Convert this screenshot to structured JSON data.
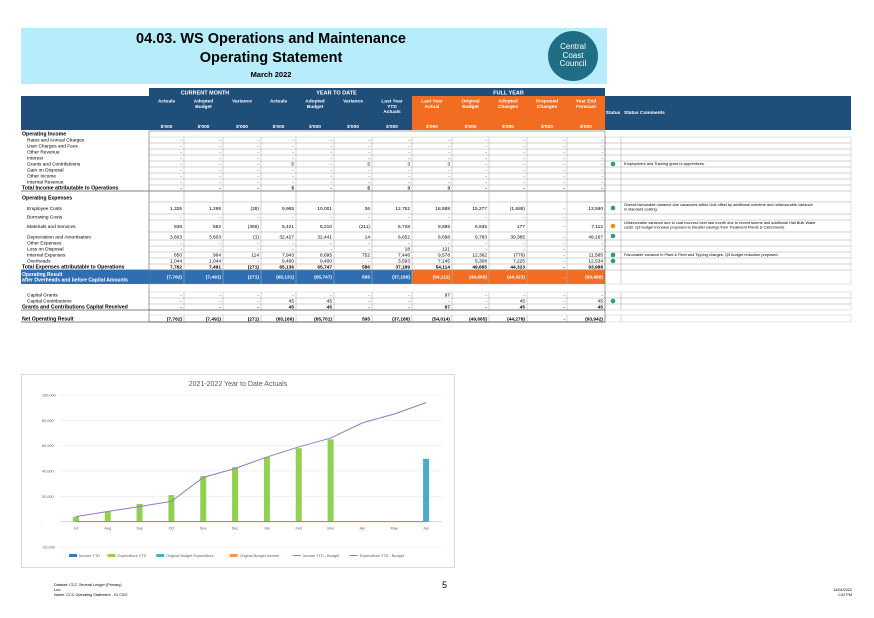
{
  "header": {
    "title_line1": "04.03.  WS Operations and Maintenance",
    "title_line2": "Operating Statement",
    "period": "March 2022",
    "logo_lines": [
      "Central",
      "Coast",
      "Council"
    ]
  },
  "table": {
    "groups": [
      "CURRENT MONTH",
      "YEAR TO DATE",
      "FULL YEAR"
    ],
    "columns": [
      "Actuals",
      "Adopted Budget",
      "Variance",
      "Actuals",
      "Adopted Budget",
      "Variance",
      "Last Year YTD Actuals",
      "Last Year Actual",
      "Original Budget",
      "Adopted Changes",
      "Proposed Changes",
      "Year End Forecast"
    ],
    "units": [
      "$'000",
      "$'000",
      "$'000",
      "$'000",
      "$'000",
      "$'000",
      "$'000",
      "$'000",
      "$'000",
      "$'000",
      "$'000",
      "$'000"
    ],
    "status_header": "Status",
    "comments_header": "Status Comments",
    "rows": [
      {
        "label": "Operating Income",
        "type": "section",
        "values": []
      },
      {
        "label": "Rates and Annual Charges",
        "type": "item",
        "values": [
          "-",
          "-",
          "-",
          "-",
          "-",
          "-",
          "-",
          "-",
          "-",
          "-",
          "-",
          "-"
        ]
      },
      {
        "label": "User Charges and Fees",
        "type": "item",
        "values": [
          "-",
          "-",
          "-",
          "-",
          "-",
          "-",
          "-",
          "-",
          "-",
          "-",
          "-",
          "-"
        ]
      },
      {
        "label": "Other Revenue",
        "type": "item",
        "values": [
          "-",
          "-",
          "-",
          "-",
          "-",
          "-",
          "-",
          "-",
          "-",
          "-",
          "-",
          "-"
        ]
      },
      {
        "label": "Interest",
        "type": "item",
        "values": [
          "-",
          "-",
          "-",
          "-",
          "-",
          "-",
          "-",
          "-",
          "-",
          "-",
          "-",
          "-"
        ]
      },
      {
        "label": "Grants and Contributions",
        "type": "item",
        "values": [
          "-",
          "-",
          "-",
          "5",
          "-",
          "5",
          "3",
          "3",
          "-",
          "-",
          "-",
          "-"
        ],
        "status": "green",
        "comment": "Employment and Training grant re apprentices."
      },
      {
        "label": "Gain on Disposal",
        "type": "item",
        "values": [
          "-",
          "-",
          "-",
          "-",
          "-",
          "-",
          "-",
          "-",
          "-",
          "-",
          "-",
          "-"
        ]
      },
      {
        "label": "Other Income",
        "type": "item",
        "values": [
          "-",
          "-",
          "-",
          "-",
          "-",
          "-",
          "-",
          "-",
          "-",
          "-",
          "-",
          "-"
        ]
      },
      {
        "label": "Internal Revenue",
        "type": "item",
        "values": [
          "-",
          "-",
          "-",
          "-",
          "-",
          "-",
          "-",
          "-",
          "-",
          "-",
          "-",
          "-"
        ]
      },
      {
        "label": "Total Income attributable to Operations",
        "type": "total",
        "values": [
          "-",
          "-",
          "-",
          "5",
          "-",
          "5",
          "3",
          "3",
          "-",
          "-",
          "-",
          "-"
        ]
      },
      {
        "label": "Operating Expenses",
        "type": "section",
        "values": []
      },
      {
        "label": "Employee Costs",
        "type": "item",
        "tall": true,
        "values": [
          "1,326",
          "1,298",
          "(28)",
          "9,965",
          "10,001",
          "36",
          "12,752",
          "18,888",
          "15,277",
          "(1,688)",
          "-",
          "13,590"
        ],
        "status": "green",
        "comment": "Overall favourable variance due vacancies within Unit offset by additional overtime and unfavourable variance in standard costing."
      },
      {
        "label": "Borrowing Costs",
        "type": "item",
        "values": [
          "-",
          "-",
          "-",
          "-",
          "-",
          "-",
          "-",
          "-",
          "-",
          "-",
          "-",
          "-"
        ]
      },
      {
        "label": "Materials and Services",
        "type": "item",
        "tall": true,
        "values": [
          "938",
          "582",
          "(356)",
          "5,421",
          "5,210",
          "(211)",
          "6,728",
          "9,885",
          "6,935",
          "177",
          "-",
          "7,112"
        ],
        "status": "orange",
        "comment": "Unfavourable variance due to coat incurred over last month due to recent storms and additional Hall Bulk Water costs. Q3 budget increase proposed to transfer savings from Treatment Plants & Catchments."
      },
      {
        "label": "Depreciation and Amortisation",
        "type": "item",
        "values": [
          "3,603",
          "3,603",
          "(1)",
          "32,427",
          "32,441",
          "14",
          "6,652",
          "8,698",
          "9,783",
          "39,385",
          "-",
          "49,167"
        ],
        "status": "green"
      },
      {
        "label": "Other Expenses",
        "type": "item",
        "values": [
          "-",
          "-",
          "-",
          "-",
          "-",
          "-",
          "-",
          "-",
          "-",
          "-",
          "-",
          "-"
        ]
      },
      {
        "label": "Loss on Disposal",
        "type": "item",
        "values": [
          "-",
          "-",
          "-",
          "-",
          "-",
          "-",
          "18",
          "121",
          "-",
          "-",
          "-",
          "-"
        ]
      },
      {
        "label": "Internal Expenses",
        "type": "item",
        "values": [
          "850",
          "964",
          "114",
          "7,943",
          "8,695",
          "752",
          "7,446",
          "9,578",
          "12,362",
          "(776)",
          "-",
          "11,585"
        ],
        "status": "green",
        "comment": "Favourable variance in Plant & Fleet and Tipping charges, Q3 budget reduction proposed."
      },
      {
        "label": "Overheads",
        "type": "item",
        "values": [
          "1,044",
          "1,044",
          "-",
          "9,400",
          "9,400",
          "-",
          "3,593",
          "7,145",
          "5,308",
          "7,225",
          "-",
          "12,534"
        ],
        "status": "green"
      },
      {
        "label": "Total Expenses attributable to Operations",
        "type": "total",
        "values": [
          "7,762",
          "7,491",
          "(271)",
          "65,136",
          "65,747",
          "586",
          "37,189",
          "54,114",
          "49,665",
          "44,323",
          "-",
          "93,988"
        ]
      },
      {
        "label": "Operating Result|after Overheads and before Capital Amounts",
        "type": "result",
        "values": [
          "(7,762)",
          "(7,491)",
          "(271)",
          "(65,131)",
          "(65,747)",
          "595",
          "(37,186)",
          "(54,111)",
          "(49,665)",
          "(44,323)",
          "-",
          "(93,988)"
        ]
      },
      {
        "label": "Capital Grants",
        "type": "item",
        "values": [
          "-",
          "-",
          "-",
          "-",
          "-",
          "-",
          "-",
          "97",
          "-",
          "-",
          "-",
          "-"
        ]
      },
      {
        "label": "Capital Contributions",
        "type": "item",
        "values": [
          "-",
          "-",
          "-",
          "45",
          "45",
          "-",
          "-",
          "-",
          "-",
          "45",
          "-",
          "45"
        ],
        "status": "green"
      },
      {
        "label": "Grants and Contributions Capital Received",
        "type": "total",
        "values": [
          "-",
          "-",
          "-",
          "45",
          "45",
          "-",
          "-",
          "97",
          "-",
          "45",
          "-",
          "45"
        ]
      },
      {
        "label": "Net Operating Result",
        "type": "total",
        "values": [
          "(7,762)",
          "(7,491)",
          "(271)",
          "(65,166)",
          "(65,701)",
          "595",
          "(37,186)",
          "(54,014)",
          "(49,665)",
          "(44,278)",
          "-",
          "(93,942)"
        ]
      }
    ]
  },
  "chart_data": {
    "type": "bar",
    "title": "2021-2022 Year to Date Actuals",
    "categories": [
      "Jul",
      "Aug",
      "Sep",
      "Oct",
      "Nov",
      "Dec",
      "Jan",
      "Feb",
      "Mar",
      "Apr",
      "May",
      "Jun"
    ],
    "ylim": [
      -20000,
      100000
    ],
    "y_ticks": [
      -20000,
      0,
      20000,
      40000,
      60000,
      80000,
      100000
    ],
    "y_tick_labels": [
      "-20,000",
      "-",
      "20,000",
      "40,000",
      "60,000",
      "80,000",
      "100,000"
    ],
    "legend_position": "bottom",
    "series": [
      {
        "name": "Income YTD",
        "type": "bar",
        "color": "#4472c4",
        "values": [
          0,
          0,
          0,
          5,
          5,
          5,
          5,
          5,
          5,
          null,
          null,
          null
        ]
      },
      {
        "name": "Expenditure YTD",
        "type": "bar",
        "color": "#92d050",
        "values": [
          4000,
          8000,
          14000,
          21000,
          36000,
          43000,
          51000,
          58000,
          65000,
          null,
          null,
          null
        ]
      },
      {
        "name": "Original Budget Expenditure",
        "type": "bar",
        "color": "#4bacc6",
        "values": [
          null,
          null,
          null,
          null,
          null,
          null,
          null,
          null,
          null,
          null,
          null,
          49665
        ]
      },
      {
        "name": "Original Budget Income",
        "type": "bar",
        "color": "#f79646",
        "values": [
          null,
          null,
          null,
          null,
          null,
          null,
          null,
          null,
          null,
          null,
          null,
          0
        ]
      },
      {
        "name": "Income YTD - Budget",
        "type": "line",
        "color": "#e06666",
        "values": [
          0,
          0,
          0,
          0,
          0,
          0,
          0,
          0,
          0,
          0,
          0,
          0
        ]
      },
      {
        "name": "Expenditure YTD - Budget",
        "type": "line",
        "color": "#8e7cc3",
        "values": [
          4000,
          8000,
          12000,
          16000,
          35000,
          42000,
          51000,
          59000,
          66000,
          78000,
          85000,
          94000
        ]
      }
    ]
  },
  "footer": {
    "left_lines": [
      "Dataset: CCC General Ledger (Primary)",
      "Lov:",
      "Name: CCC Operating Statement - 01 CSO"
    ],
    "page": "5",
    "right_lines": [
      "14/04/2022",
      "1:02 PM"
    ]
  },
  "colors": {
    "band": "#b7ecfb",
    "header_blue": "#1f4e79",
    "header_orange": "#f26c21",
    "result_blue": "#2e6fb3",
    "status_green": "#2e9e6a",
    "status_orange": "#f29100"
  }
}
